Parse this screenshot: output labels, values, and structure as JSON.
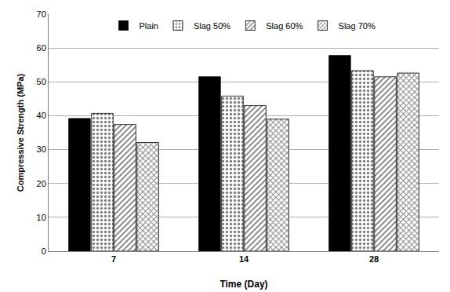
{
  "chart_data": {
    "type": "bar",
    "categories": [
      "7",
      "14",
      "28"
    ],
    "series": [
      {
        "name": "Plain",
        "color": "#000000",
        "marker": "solid",
        "values": [
          39.2,
          51.5,
          57.8
        ]
      },
      {
        "name": "Slag 50%",
        "color": "#000000",
        "marker": "dots",
        "values": [
          40.7,
          45.8,
          53.3
        ]
      },
      {
        "name": "Slag 60%",
        "color": "#000000",
        "marker": "hatch",
        "values": [
          37.4,
          43.0,
          51.5
        ]
      },
      {
        "name": "Slag 70%",
        "color": "#000000",
        "marker": "crosshatch",
        "values": [
          32.1,
          39.0,
          52.6
        ]
      }
    ],
    "x_label": "Time (Day)",
    "y_label": "Compressive Strength (MPa)",
    "ylim": [
      0,
      70
    ],
    "yticks": [
      0,
      10,
      20,
      30,
      40,
      50,
      60,
      70
    ],
    "grid": true,
    "legend": "top"
  }
}
